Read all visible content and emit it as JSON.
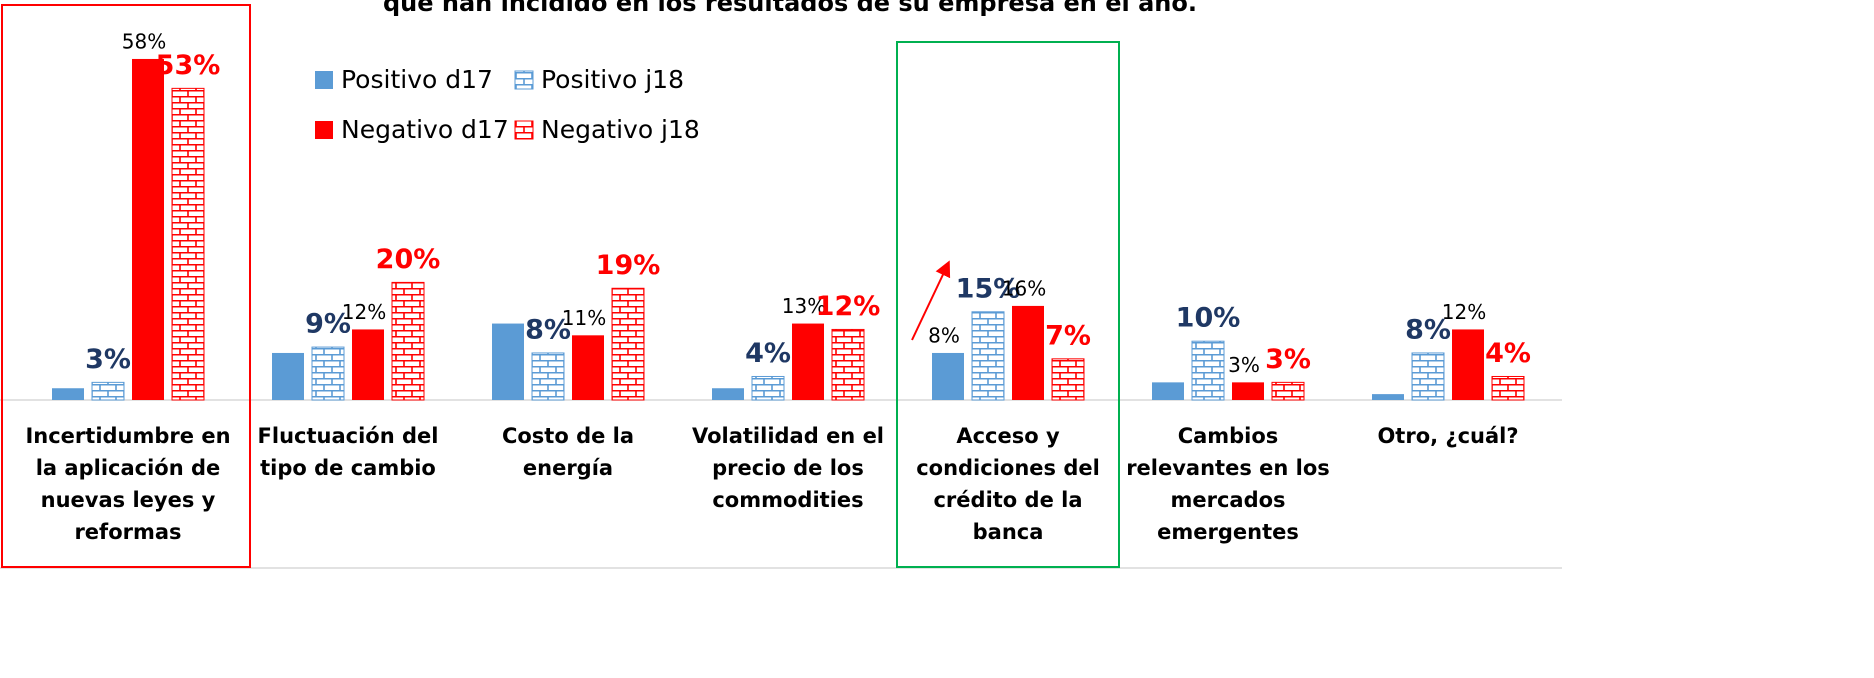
{
  "chart_data": {
    "type": "bar",
    "title": "que han incidido en los resultados de su empresa en el año.",
    "categories": [
      "Incertidumbre en la aplicación de nuevas leyes y reformas",
      "Fluctuación del tipo de cambio",
      "Costo de la energía",
      "Volatilidad en el precio de los commodities",
      "Acceso y condiciones del crédito de la banca",
      "Cambios relevantes en los mercados emergentes",
      "Otro, ¿cuál?"
    ],
    "series": [
      {
        "name": "Positivo d17",
        "color": "#5b9bd5",
        "hatch": false,
        "label_color": "#000000",
        "values": [
          2,
          8,
          13,
          2,
          8,
          3,
          1
        ],
        "value_labels": [
          null,
          null,
          null,
          null,
          "8%",
          null,
          null
        ]
      },
      {
        "name": "Positivo j18",
        "color": "#5b9bd5",
        "hatch": true,
        "label_color": "#1f3864",
        "values": [
          3,
          9,
          8,
          4,
          15,
          10,
          8
        ],
        "value_labels": [
          "3%",
          "9%",
          "8%",
          "4%",
          "15%",
          "10%",
          "8%"
        ]
      },
      {
        "name": "Negativo d17",
        "color": "#ff0000",
        "hatch": false,
        "label_color": "#000000",
        "values": [
          58,
          12,
          11,
          13,
          16,
          3,
          12
        ],
        "value_labels": [
          "58%",
          "12%",
          "11%",
          "13%",
          "16%",
          "3%",
          "12%"
        ]
      },
      {
        "name": "Negativo j18",
        "color": "#ff0000",
        "hatch": true,
        "label_color": "#ff0000",
        "values": [
          53,
          20,
          19,
          12,
          7,
          3,
          4
        ],
        "value_labels": [
          "53%",
          "20%",
          "19%",
          "12%",
          "7%",
          "3%",
          "4%"
        ]
      }
    ]
  }
}
